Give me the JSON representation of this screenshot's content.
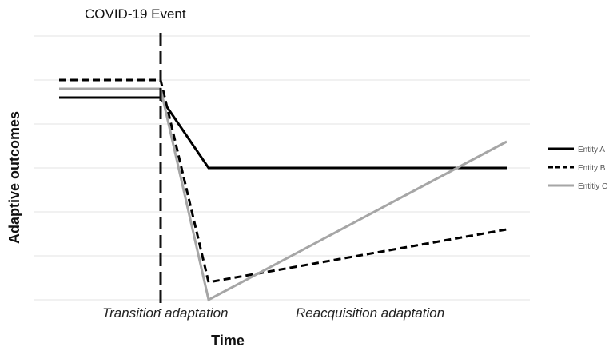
{
  "chart_data": {
    "type": "line",
    "title": "",
    "xlabel": "Time",
    "ylabel": "Adaptive outcomes",
    "grid": true,
    "legend_position": "right",
    "event_label": "COVID-19 Event",
    "phase_labels": [
      "Transition adaptation",
      "Reacquisition adaptation"
    ],
    "x": [
      0,
      1,
      1.5,
      4.5
    ],
    "ylim": [
      0,
      6
    ],
    "event_x": 1,
    "series": [
      {
        "name": "Entity A",
        "values": [
          4.6,
          4.6,
          3.0,
          3.0
        ],
        "color": "#000000",
        "style": "solid"
      },
      {
        "name": "Entity B",
        "values": [
          5.0,
          5.0,
          0.4,
          1.6
        ],
        "color": "#000000",
        "style": "dashed"
      },
      {
        "name": "Entitiy C",
        "values": [
          4.8,
          4.8,
          0.0,
          3.6
        ],
        "color": "#a6a6a6",
        "style": "solid"
      }
    ]
  }
}
